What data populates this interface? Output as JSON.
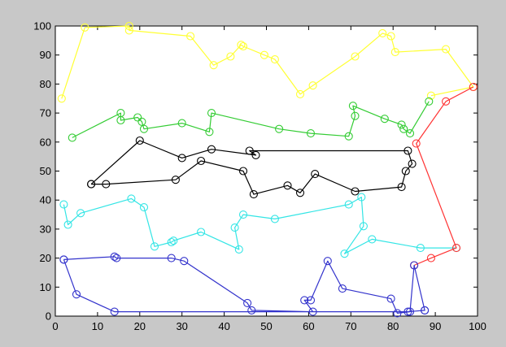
{
  "chart_data": {
    "type": "scatter",
    "title": "",
    "xlabel": "",
    "ylabel": "",
    "xlim": [
      0,
      100
    ],
    "ylim": [
      0,
      100
    ],
    "xticks": [
      "0",
      "10",
      "20",
      "30",
      "40",
      "50",
      "60",
      "70",
      "80",
      "90",
      "100"
    ],
    "yticks": [
      "0",
      "10",
      "20",
      "30",
      "40",
      "50",
      "60",
      "70",
      "80",
      "90",
      "100"
    ],
    "grid": false,
    "legend": "none",
    "background_color": "#c8c8c8",
    "axes_color": "#ffffff",
    "marker": "circle",
    "series": [
      {
        "color": "#ffff33",
        "points": [
          [
            1.5,
            75
          ],
          [
            7,
            99.5
          ],
          [
            17.5,
            100
          ],
          [
            17.5,
            98.5
          ],
          [
            32,
            96.5
          ],
          [
            37.5,
            86.5
          ],
          [
            41.5,
            89.5
          ],
          [
            44,
            93.5
          ],
          [
            44.5,
            93
          ],
          [
            49.5,
            90
          ],
          [
            52,
            88.5
          ],
          [
            58,
            76.5
          ],
          [
            61,
            79.5
          ],
          [
            71,
            89.5
          ],
          [
            77.5,
            97.5
          ],
          [
            79.5,
            96.5
          ],
          [
            80.5,
            91
          ],
          [
            92.5,
            92
          ],
          [
            99,
            79
          ],
          [
            89,
            76
          ]
        ]
      },
      {
        "color": "#33cc33",
        "points": [
          [
            4,
            61.5
          ],
          [
            15.5,
            70
          ],
          [
            15.5,
            67.5
          ],
          [
            19.5,
            68.5
          ],
          [
            20.5,
            67
          ],
          [
            21,
            64.5
          ],
          [
            30,
            66.5
          ],
          [
            36.5,
            63.5
          ],
          [
            37,
            70
          ],
          [
            53,
            64.5
          ],
          [
            60.5,
            63
          ],
          [
            69.5,
            62
          ],
          [
            71,
            69
          ],
          [
            70.5,
            72.5
          ],
          [
            78,
            68
          ],
          [
            82,
            66
          ],
          [
            82.5,
            64.5
          ],
          [
            84,
            63
          ],
          [
            88.5,
            74
          ]
        ]
      },
      {
        "color": "#000000",
        "points": [
          [
            8.5,
            45.5
          ],
          [
            12,
            45.5
          ],
          [
            28.5,
            47
          ],
          [
            34.5,
            53.5
          ],
          [
            44.5,
            50
          ],
          [
            47,
            42
          ],
          [
            55,
            45
          ],
          [
            58,
            42.5
          ],
          [
            61.5,
            49
          ],
          [
            71,
            43
          ],
          [
            82,
            44.5
          ],
          [
            83,
            50
          ],
          [
            84.5,
            52.5
          ],
          [
            83.5,
            57
          ],
          [
            46,
            57
          ],
          [
            47.5,
            55.5
          ],
          [
            37,
            57.5
          ],
          [
            30,
            54.5
          ],
          [
            20,
            60.5
          ],
          [
            8.5,
            45.5
          ]
        ]
      },
      {
        "color": "#33e5e5",
        "points": [
          [
            2,
            38.5
          ],
          [
            3,
            31.5
          ],
          [
            6,
            35.5
          ],
          [
            18,
            40.5
          ],
          [
            21,
            37.5
          ],
          [
            23.5,
            24
          ],
          [
            27.5,
            25.5
          ],
          [
            28,
            26
          ],
          [
            34.5,
            29
          ],
          [
            43.5,
            23
          ],
          [
            42.5,
            30.5
          ],
          [
            44.5,
            35
          ],
          [
            52,
            33.5
          ],
          [
            69.5,
            38.5
          ],
          [
            72.5,
            41
          ],
          [
            73,
            31
          ],
          [
            68.5,
            21.5
          ],
          [
            75,
            26.5
          ],
          [
            86.5,
            23.5
          ],
          [
            95,
            23.5
          ]
        ]
      },
      {
        "color": "#ff3333",
        "points": [
          [
            99,
            79
          ],
          [
            92.5,
            74
          ],
          [
            85.5,
            59.5
          ],
          [
            95,
            23.5
          ],
          [
            89,
            20
          ],
          [
            85,
            17.5
          ]
        ]
      },
      {
        "color": "#3333cc",
        "points": [
          [
            2,
            19.5
          ],
          [
            14,
            20.5
          ],
          [
            14.5,
            20
          ],
          [
            27.5,
            20
          ],
          [
            30.5,
            19
          ],
          [
            45.5,
            4.5
          ],
          [
            46.5,
            2
          ],
          [
            61,
            1.5
          ],
          [
            59,
            5.5
          ],
          [
            60.5,
            5.5
          ],
          [
            64.5,
            19
          ],
          [
            68,
            9.5
          ],
          [
            79.5,
            6
          ],
          [
            81,
            1
          ],
          [
            84,
            1.5
          ],
          [
            85,
            17.5
          ],
          [
            87.5,
            2
          ],
          [
            87.5,
            2
          ],
          [
            83.5,
            1.5
          ],
          [
            14,
            1.5
          ],
          [
            5,
            7.5
          ],
          [
            2,
            19.5
          ]
        ]
      }
    ]
  }
}
